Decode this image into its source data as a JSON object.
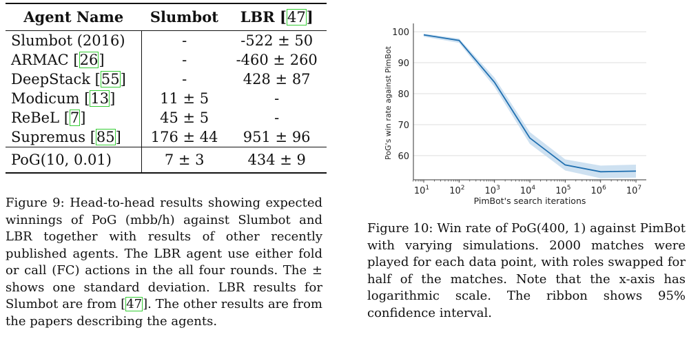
{
  "table": {
    "headers": [
      "Agent Name",
      "Slumbot",
      "LBR"
    ],
    "header_cite": "47",
    "rows": [
      {
        "name": "Slumbot (2016)",
        "cite": "",
        "slumbot": "-",
        "lbr": "-522 ± 50"
      },
      {
        "name": "ARMAC",
        "cite": "26",
        "slumbot": "-",
        "lbr": "-460 ± 260"
      },
      {
        "name": "DeepStack",
        "cite": "55",
        "slumbot": "-",
        "lbr": "428 ± 87"
      },
      {
        "name": "Modicum",
        "cite": "13",
        "slumbot": "11 ± 5",
        "lbr": "-"
      },
      {
        "name": "ReBeL",
        "cite": "7",
        "slumbot": "45 ± 5",
        "lbr": "-"
      },
      {
        "name": "Supremus",
        "cite": "85",
        "slumbot": "176 ± 44",
        "lbr": "951 ± 96"
      }
    ],
    "final": {
      "name": "PoG(10, 0.01)",
      "slumbot": "7 ± 3",
      "lbr": "434 ± 9"
    }
  },
  "caption9": {
    "a": "Figure 9:  Head-to-head results showing expected winnings of PoG (mbb/h) against Slumbot and LBR together with results of other recently published agents. The LBR agent use either fold or call (FC) actions in the all four rounds. The ± shows one standard deviation. LBR results for Slumbot are from ",
    "cite": "47",
    "b": ". The other results are from the papers describing the agents."
  },
  "caption10": "Figure 10: Win rate of PoG(400, 1) against PimBot with varying simulations.   2000 matches were played for each data point, with roles swapped for half of the matches. Note that the x-axis has logarithmic scale. The ribbon shows 95% confidence interval.",
  "chart_data": {
    "type": "line",
    "xlabel": "PimBot's search iterations",
    "ylabel": "PoG's win rate against PimBot",
    "x_scale": "log",
    "x": [
      10,
      100,
      1000,
      10000,
      100000,
      1000000,
      10000000
    ],
    "x_tick_labels": [
      "10",
      "10",
      "10",
      "10",
      "10",
      "10",
      "10"
    ],
    "x_tick_exponents": [
      "1",
      "2",
      "3",
      "4",
      "5",
      "6",
      "7"
    ],
    "y": [
      99,
      97.2,
      83.7,
      65.7,
      57,
      54.8,
      55
    ],
    "ci_low": [
      98.4,
      96.4,
      82.2,
      63.8,
      55.2,
      52.7,
      52.9
    ],
    "ci_high": [
      99.4,
      97.8,
      85.2,
      67.6,
      58.8,
      56.8,
      57.1
    ],
    "yticks": [
      60,
      70,
      80,
      90,
      100
    ],
    "ylim": [
      52.2,
      101.8
    ],
    "grid": "horizontal",
    "line_color": "#1f6fb0",
    "ribbon_color": "#c6dcee"
  }
}
